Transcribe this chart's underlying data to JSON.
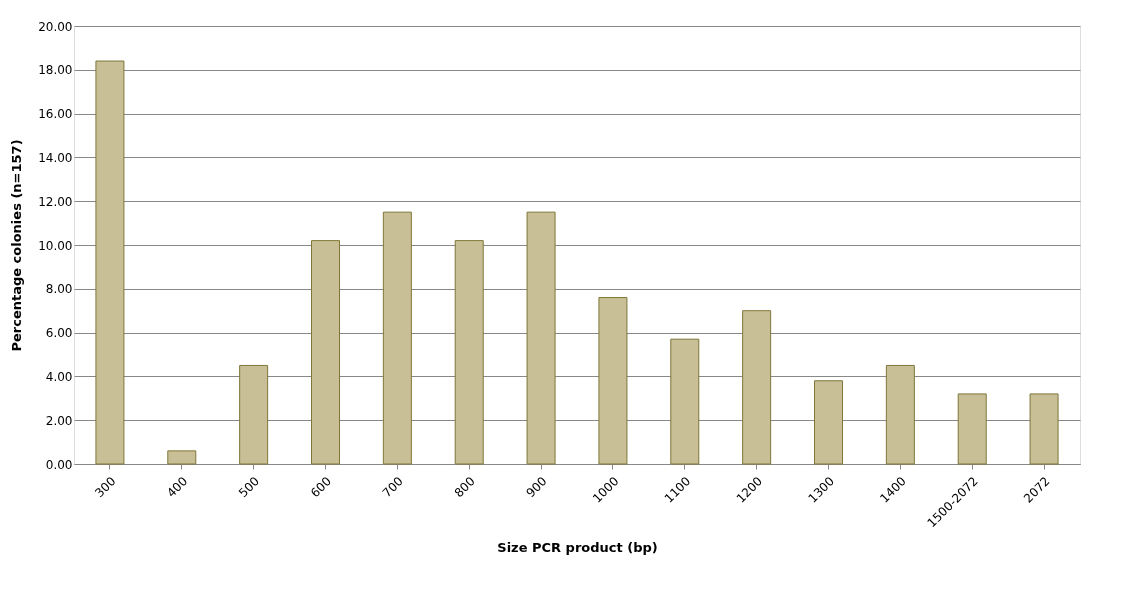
{
  "chart_data": {
    "type": "bar",
    "xlabel": "Size PCR product (bp)",
    "ylabel": "Percentage colonies (n=157)",
    "categories": [
      "300",
      "400",
      "500",
      "600",
      "700",
      "800",
      "900",
      "1000",
      "1100",
      "1200",
      "1300",
      "1400",
      "1500-2072",
      "2072"
    ],
    "values": [
      18.4,
      0.6,
      4.5,
      10.2,
      11.5,
      10.2,
      11.5,
      7.6,
      5.7,
      7.0,
      3.8,
      4.5,
      3.2,
      3.2
    ],
    "color": "#c8bf96",
    "ylim": [
      0,
      20
    ],
    "yticks": [
      {
        "value": 0,
        "label": "0.00"
      },
      {
        "value": 2,
        "label": "2.00"
      },
      {
        "value": 4,
        "label": "4.00"
      },
      {
        "value": 6,
        "label": "6.00"
      },
      {
        "value": 8,
        "label": "8.00"
      },
      {
        "value": 10,
        "label": "10.00"
      },
      {
        "value": 12,
        "label": "12.00"
      },
      {
        "value": 14,
        "label": "14.00"
      },
      {
        "value": 16,
        "label": "16.00"
      },
      {
        "value": 18,
        "label": "18.00"
      },
      {
        "value": 20,
        "label": "20.00"
      }
    ],
    "grid": "y"
  }
}
